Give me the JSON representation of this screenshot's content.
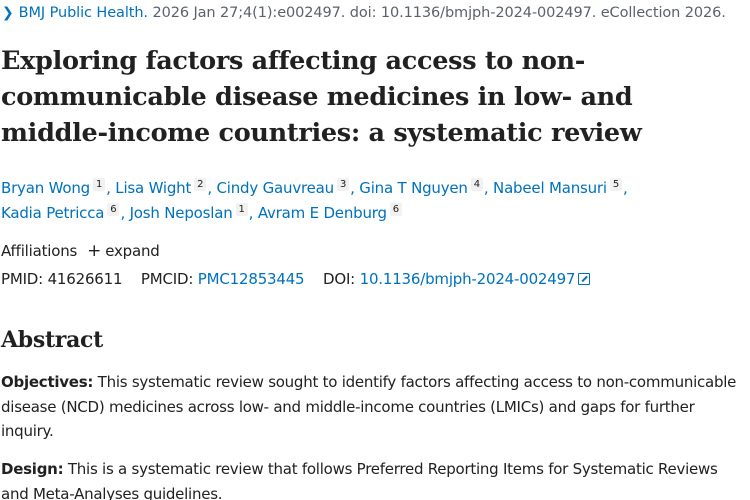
{
  "citation": {
    "chevron_icon": "chevron-right-icon",
    "journal": "BMJ Public Health.",
    "details": " 2026 Jan 27;4(1):e002497. doi: 10.1136/bmjph-2024-002497. eCollection 2026."
  },
  "title": "Exploring factors affecting access to non-communicable disease medicines in low- and middle-income countries: a systematic review",
  "authors": [
    {
      "name": "Bryan Wong",
      "affiliation": "1"
    },
    {
      "name": "Lisa Wight",
      "affiliation": "2"
    },
    {
      "name": "Cindy Gauvreau",
      "affiliation": "3"
    },
    {
      "name": "Gina T Nguyen",
      "affiliation": "4"
    },
    {
      "name": "Nabeel Mansuri",
      "affiliation": "5"
    },
    {
      "name": "Kadia Petricca",
      "affiliation": "6"
    },
    {
      "name": "Josh Neposlan",
      "affiliation": "1"
    },
    {
      "name": "Avram E Denburg",
      "affiliation": "6"
    }
  ],
  "affiliations": {
    "label": "Affiliations",
    "expand_icon": "+",
    "expand_label": "expand"
  },
  "identifiers": {
    "pmid_label": "PMID:",
    "pmid": "41626611",
    "pmcid_label": "PMCID:",
    "pmcid": "PMC12853445",
    "doi_label": "DOI:",
    "doi": "10.1136/bmjph-2024-002497"
  },
  "abstract": {
    "heading": "Abstract",
    "sections": [
      {
        "label": "Objectives:",
        "text": " This systematic review sought to identify factors affecting access to non-communicable disease (NCD) medicines across low- and middle-income countries (LMICs) and gaps for further inquiry."
      },
      {
        "label": "Design:",
        "text": " This is a systematic review that follows Preferred Reporting Items for Systematic Reviews and Meta-Analyses guidelines."
      }
    ]
  }
}
